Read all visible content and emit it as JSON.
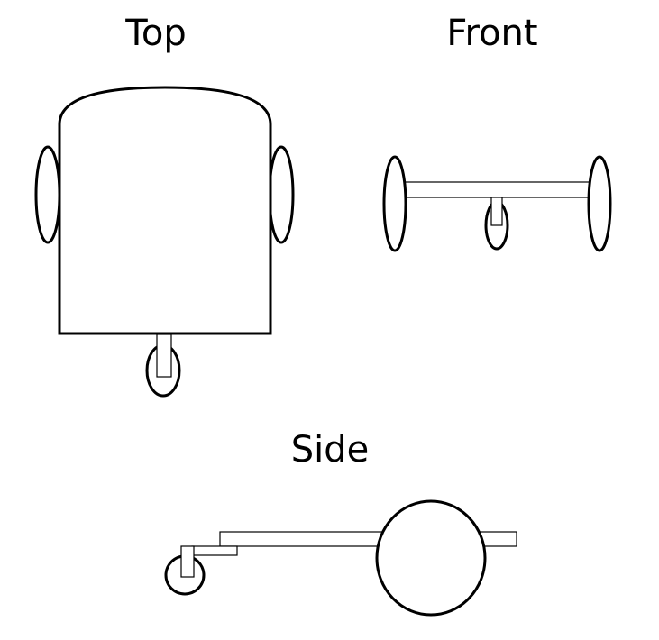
{
  "views": {
    "top": {
      "title": "Top"
    },
    "front": {
      "title": "Front"
    },
    "side": {
      "title": "Side"
    }
  },
  "colors": {
    "stroke": "#000000",
    "background": "#ffffff"
  }
}
